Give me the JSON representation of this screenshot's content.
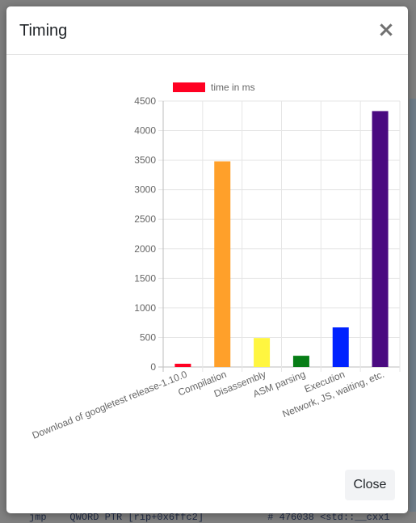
{
  "background": {
    "bottom_code": "     jmp    QWORD PTR [rip+0x6ffc2]           # 476038 <std::__cxx1"
  },
  "modal": {
    "title": "Timing",
    "close_icon": "close-icon",
    "footer": {
      "close_label": "Close"
    }
  },
  "chart_data": {
    "type": "bar",
    "legend": {
      "label": "time in ms",
      "color": "#ff0022",
      "position": "top"
    },
    "categories": [
      "Download of googletest release-1.10.0",
      "Compilation",
      "Disassembly",
      "ASM parsing",
      "Execution",
      "Network, JS, waiting, etc."
    ],
    "values": [
      55,
      3480,
      490,
      190,
      670,
      4330
    ],
    "colors": [
      "#ff0022",
      "#ffa02a",
      "#fff640",
      "#077d16",
      "#0022ff",
      "#4a0a80"
    ],
    "ylim": [
      0,
      4500
    ],
    "yticks": [
      0,
      500,
      1000,
      1500,
      2000,
      2500,
      3000,
      3500,
      4000,
      4500
    ],
    "grid": true
  }
}
